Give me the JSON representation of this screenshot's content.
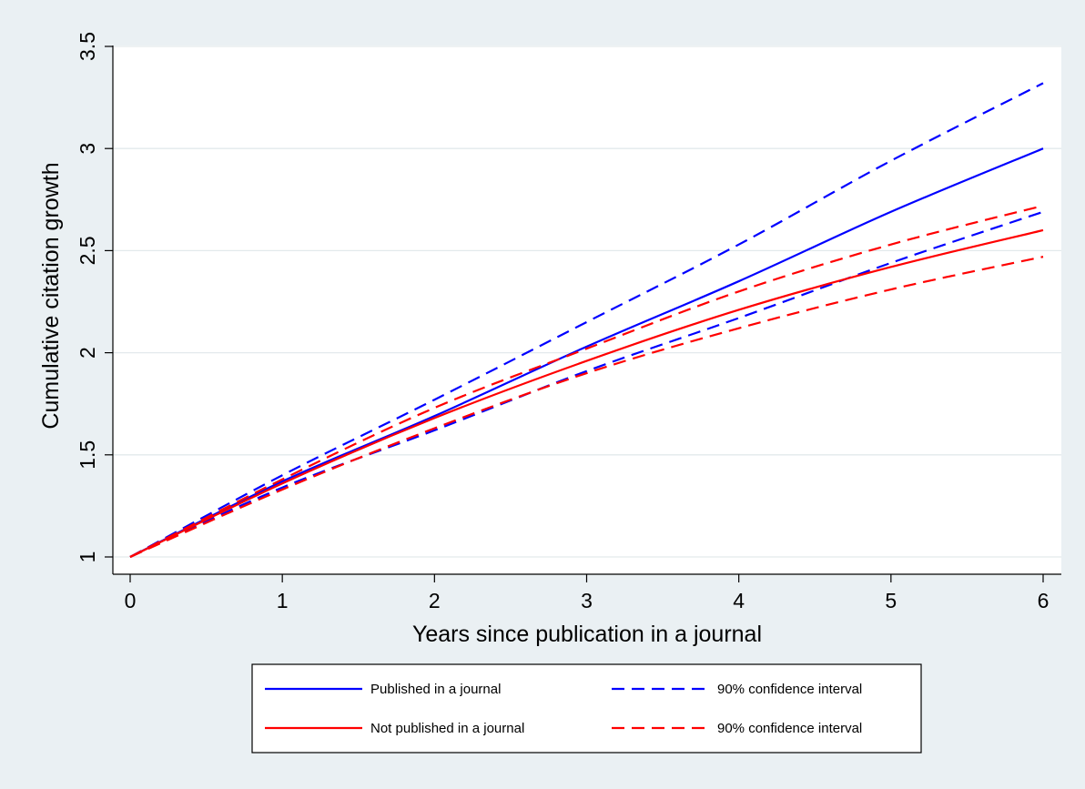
{
  "chart_data": {
    "type": "line",
    "xlabel": "Years since publication in a journal",
    "ylabel": "Cumulative citation growth",
    "xlim": [
      0,
      6
    ],
    "ylim": [
      1,
      3.5
    ],
    "x_ticks": [
      "0",
      "1",
      "2",
      "3",
      "4",
      "5",
      "6"
    ],
    "y_ticks": [
      "1",
      "1.5",
      "2",
      "2.5",
      "3",
      "3.5"
    ],
    "grid": true,
    "legend_position": "bottom",
    "x": [
      0,
      1,
      2,
      3,
      4,
      5,
      6
    ],
    "series": [
      {
        "name": "Published in a journal",
        "color": "#0000ff",
        "style": "solid",
        "values": [
          1,
          1.37,
          1.69,
          2.03,
          2.35,
          2.69,
          3.0
        ]
      },
      {
        "name": "90% confidence interval",
        "color": "#0000ff",
        "style": "dashed",
        "values": [
          1,
          1.4,
          1.77,
          2.15,
          2.53,
          2.94,
          3.32
        ]
      },
      {
        "name": "",
        "color": "#0000ff",
        "style": "dashed",
        "values": [
          1,
          1.34,
          1.62,
          1.91,
          2.17,
          2.44,
          2.69
        ]
      },
      {
        "name": "Not published in a journal",
        "color": "#ff0000",
        "style": "solid",
        "values": [
          1,
          1.36,
          1.68,
          1.96,
          2.21,
          2.42,
          2.6
        ]
      },
      {
        "name": "90% confidence interval",
        "color": "#ff0000",
        "style": "dashed",
        "values": [
          1,
          1.38,
          1.73,
          2.02,
          2.3,
          2.53,
          2.72
        ]
      },
      {
        "name": "",
        "color": "#ff0000",
        "style": "dashed",
        "values": [
          1,
          1.33,
          1.63,
          1.9,
          2.12,
          2.31,
          2.47
        ]
      }
    ],
    "legend": [
      {
        "label": "Published in a journal",
        "color": "#0000ff",
        "style": "solid"
      },
      {
        "label": "90% confidence interval",
        "color": "#0000ff",
        "style": "dashed"
      },
      {
        "label": "Not published in a journal",
        "color": "#ff0000",
        "style": "solid"
      },
      {
        "label": "90% confidence interval",
        "color": "#ff0000",
        "style": "dashed"
      }
    ]
  }
}
